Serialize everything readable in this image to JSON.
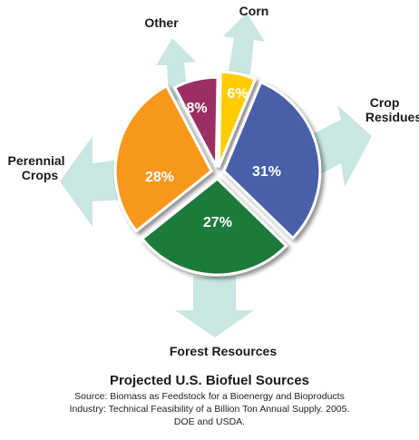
{
  "chart_data": {
    "type": "pie",
    "title": "Projected U.S. Biofuel Sources",
    "slices": [
      {
        "label": "Corn",
        "value": 6,
        "value_label": "6%",
        "color": "#ffcc00"
      },
      {
        "label": "Crop Residues",
        "value": 31,
        "value_label": "31%",
        "color": "#4a5fa8"
      },
      {
        "label": "Forest Resources",
        "value": 27,
        "value_label": "27%",
        "color": "#1f7a3a"
      },
      {
        "label": "Perennial Crops",
        "value": 28,
        "value_label": "28%",
        "color": "#f7981d"
      },
      {
        "label": "Other",
        "value": 8,
        "value_label": "8%",
        "color": "#9b2e62"
      }
    ],
    "arrow_color": "#c9e6e2"
  },
  "caption": {
    "title": "Projected U.S. Biofuel Sources",
    "source_lines": [
      "Source:  Biomass as Feedstock for a Bioenergy and Bioproducts",
      "Industry:  Technical Feasibility of a Billion Ton Annual Supply. 2005.",
      "DOE and USDA."
    ]
  }
}
